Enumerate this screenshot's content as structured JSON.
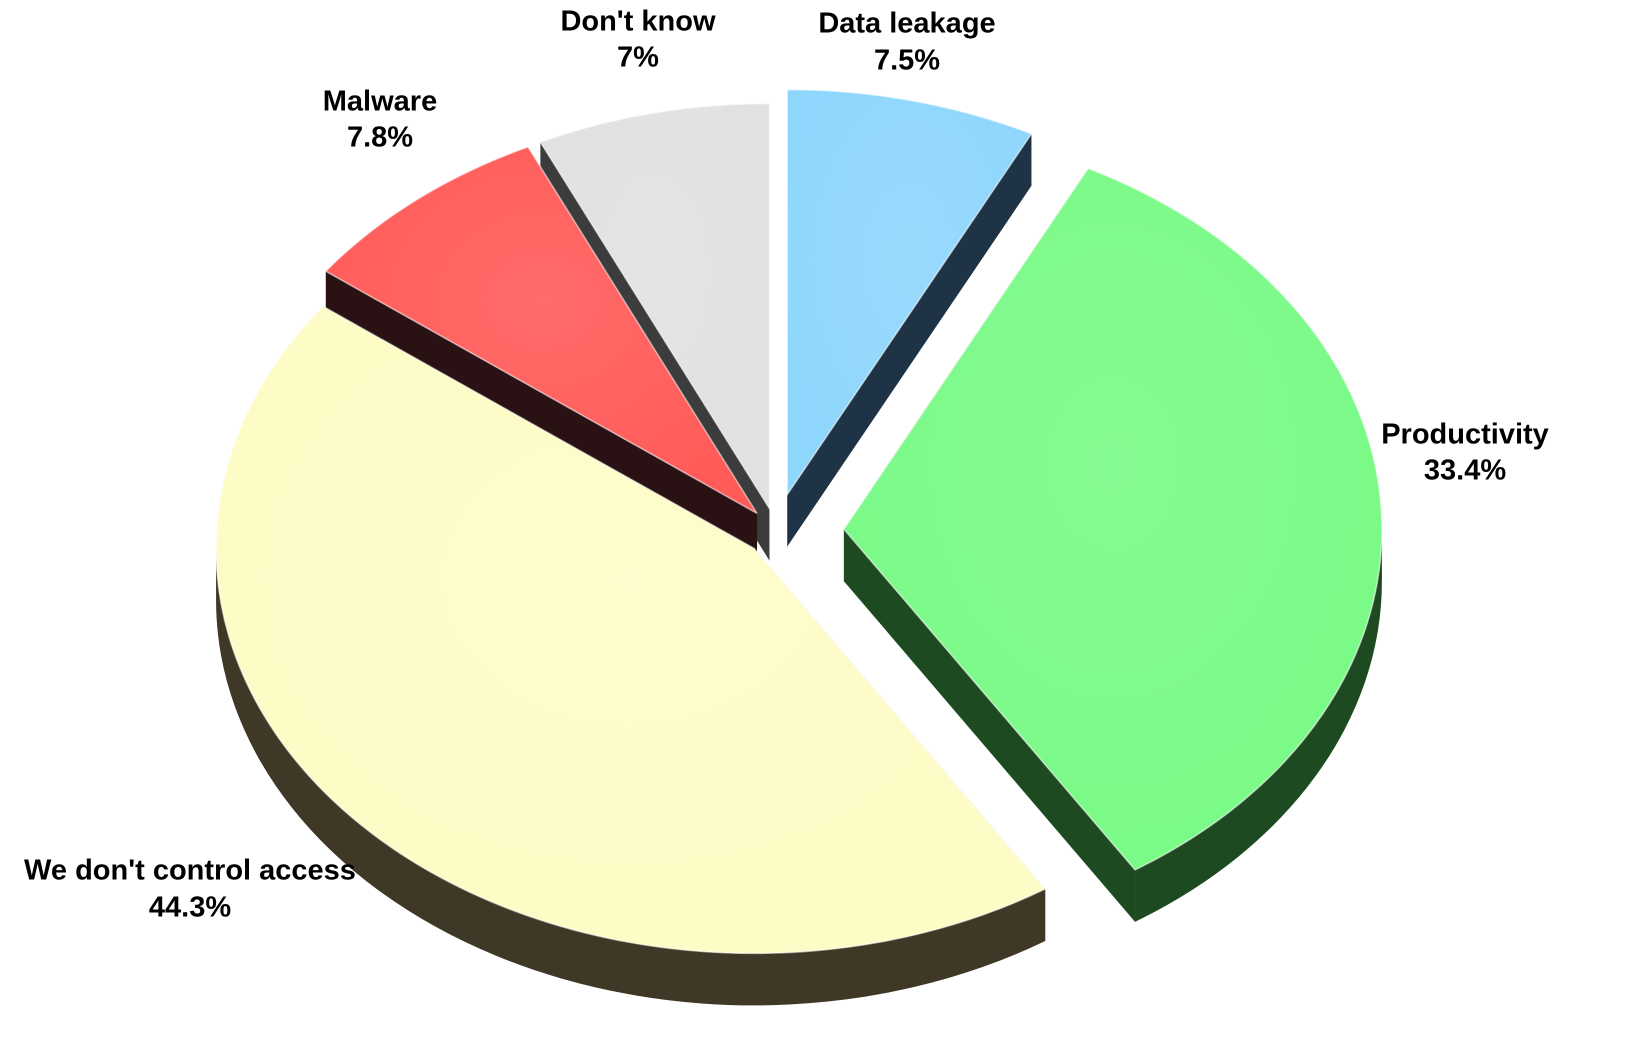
{
  "chart_data": {
    "type": "pie",
    "style": "3d-exploded",
    "title": "",
    "legend": "none",
    "slices": [
      {
        "name": "Data leakage",
        "value": 7.5,
        "label": "7.5%",
        "color": "#8ed6fc",
        "side_color": "#1e3346"
      },
      {
        "name": "Productivity",
        "value": 33.4,
        "label": "33.4%",
        "color": "#79fa86",
        "side_color": "#1e4a22"
      },
      {
        "name": "We don't control access",
        "value": 44.3,
        "label": "44.3%",
        "color": "#fdfcc6",
        "side_color": "#3f3826"
      },
      {
        "name": "Malware",
        "value": 7.8,
        "label": "7.8%",
        "color": "#ff5b59",
        "side_color": "#2a1214"
      },
      {
        "name": "Don't know",
        "value": 7,
        "label": "7%",
        "color": "#e1e1e1",
        "side_color": "#3c3c3c"
      }
    ]
  }
}
